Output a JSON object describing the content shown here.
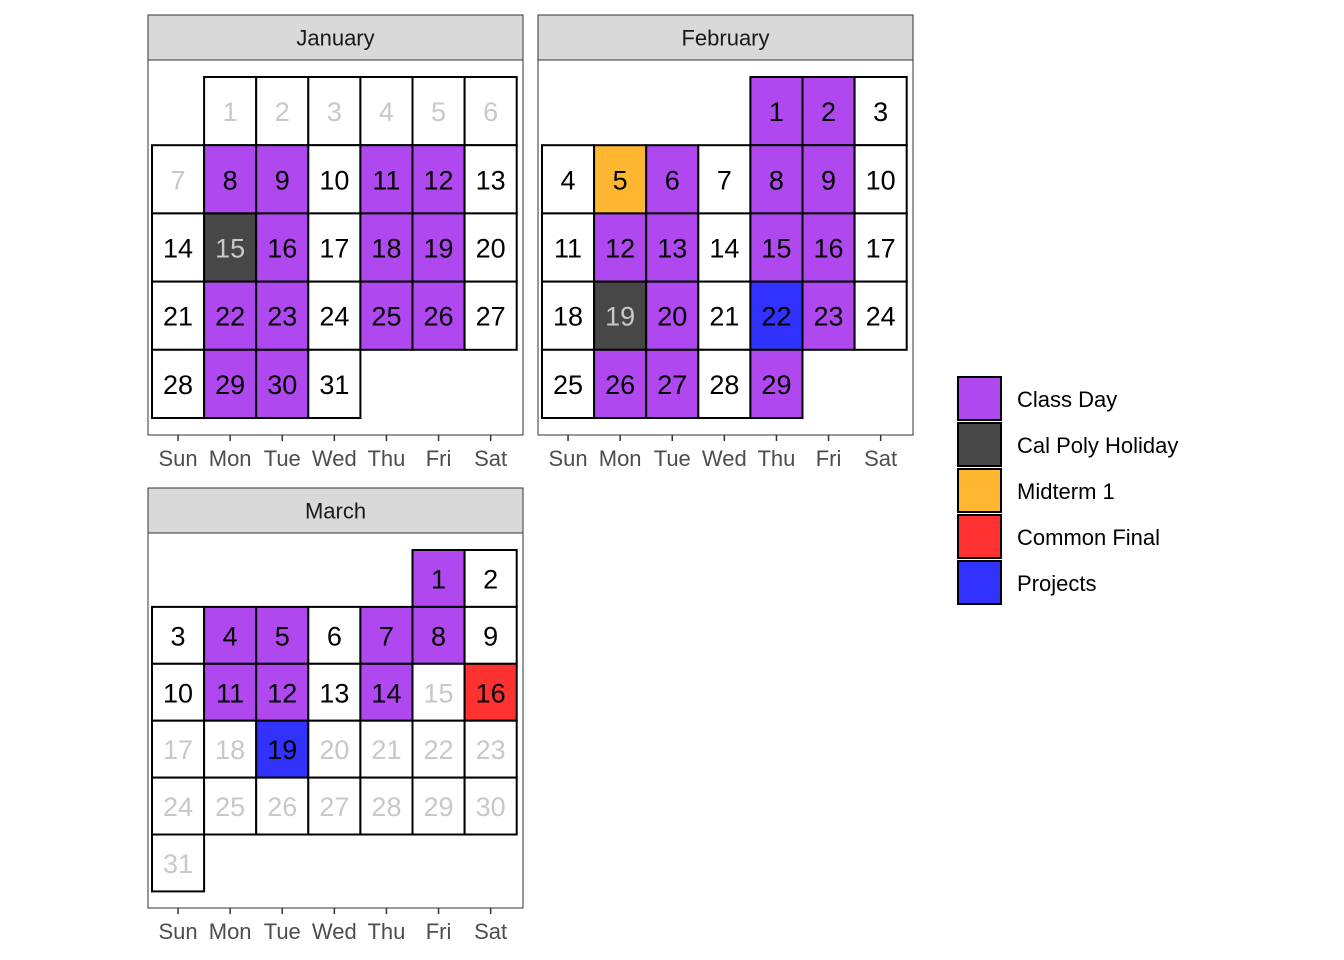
{
  "chart_data": {
    "type": "heatmap",
    "subtype": "calendar",
    "weekdays": [
      "Sun",
      "Mon",
      "Tue",
      "Wed",
      "Thu",
      "Fri",
      "Sat"
    ],
    "colors": {
      "class_day": "#b048f0",
      "holiday": "#474747",
      "midterm": "#ffb732",
      "final": "#ff3232",
      "projects": "#3232ff",
      "none": "#ffffff",
      "strip": "#d9d9d9",
      "text": "#000000",
      "muted_text": "#c8c8c8",
      "axis_text": "#4d4d4d"
    },
    "legend": [
      {
        "key": "class_day",
        "label": "Class Day"
      },
      {
        "key": "holiday",
        "label": "Cal Poly Holiday"
      },
      {
        "key": "midterm",
        "label": "Midterm 1"
      },
      {
        "key": "final",
        "label": "Common Final"
      },
      {
        "key": "projects",
        "label": "Projects"
      }
    ],
    "months": [
      {
        "name": "January",
        "first_weekday": 1,
        "days": 31,
        "muted": [
          1,
          2,
          3,
          4,
          5,
          6,
          7
        ],
        "categories": {
          "8": "class_day",
          "9": "class_day",
          "11": "class_day",
          "12": "class_day",
          "15": "holiday",
          "16": "class_day",
          "18": "class_day",
          "19": "class_day",
          "22": "class_day",
          "23": "class_day",
          "25": "class_day",
          "26": "class_day",
          "29": "class_day",
          "30": "class_day"
        }
      },
      {
        "name": "February",
        "first_weekday": 4,
        "days": 29,
        "muted": [],
        "categories": {
          "1": "class_day",
          "2": "class_day",
          "5": "midterm",
          "6": "class_day",
          "8": "class_day",
          "9": "class_day",
          "12": "class_day",
          "13": "class_day",
          "15": "class_day",
          "16": "class_day",
          "19": "holiday",
          "20": "class_day",
          "22": "projects",
          "23": "class_day",
          "26": "class_day",
          "27": "class_day",
          "29": "class_day"
        }
      },
      {
        "name": "March",
        "first_weekday": 5,
        "days": 31,
        "muted": [
          15,
          17,
          18,
          20,
          21,
          22,
          23,
          24,
          25,
          26,
          27,
          28,
          29,
          30,
          31
        ],
        "categories": {
          "1": "class_day",
          "4": "class_day",
          "5": "class_day",
          "7": "class_day",
          "8": "class_day",
          "11": "class_day",
          "12": "class_day",
          "14": "class_day",
          "16": "final",
          "19": "projects"
        }
      }
    ]
  }
}
